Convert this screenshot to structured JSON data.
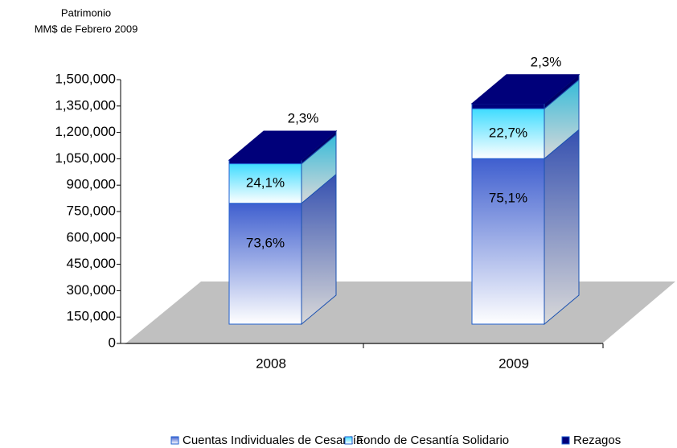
{
  "chart_data": {
    "type": "bar3d_stacked",
    "title_lines": [
      "Patrimonio",
      "MM$ de Febrero 2009"
    ],
    "categories": [
      "2008",
      "2009"
    ],
    "series": [
      {
        "name": "Cuentas Individuales de Cesantía",
        "color": "#3f5fcf",
        "values": [
          687000,
          941000
        ],
        "share_labels": [
          "73,6%",
          "75,1%"
        ]
      },
      {
        "name": "Fondo de Cesantía Solidario",
        "color": "#3fdcff",
        "values": [
          225000,
          284000
        ],
        "share_labels": [
          "24,1%",
          "22,7%"
        ]
      },
      {
        "name": "Rezagos",
        "color": "#00007a",
        "values": [
          21000,
          29000
        ],
        "share_labels": [
          "2,3%",
          "2,3%"
        ]
      }
    ],
    "ylim": [
      0,
      1500000
    ],
    "yticks": [
      0,
      {
        "value": 150000,
        "label": "150,000"
      },
      {
        "value": 300000,
        "label": "300,000"
      },
      {
        "value": 450000,
        "label": "450,000"
      },
      {
        "value": 600000,
        "label": "600,000"
      },
      {
        "value": 750000,
        "label": "750,000"
      },
      {
        "value": 900000,
        "label": "900,000"
      },
      {
        "value": 1050000,
        "label": "1,050,000"
      },
      {
        "value": 1200000,
        "label": "1,200,000"
      },
      {
        "value": 1350000,
        "label": "1,350,000"
      },
      {
        "value": 1500000,
        "label": "1,500,000"
      }
    ],
    "legend": "bottom"
  }
}
